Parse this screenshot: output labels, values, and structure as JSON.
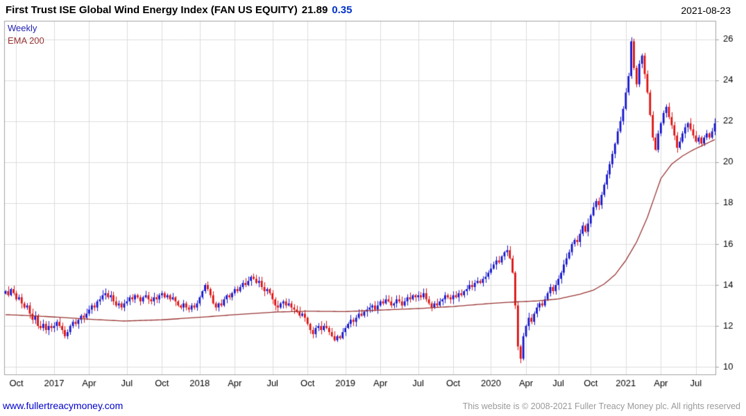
{
  "header": {
    "title": "First Trust ISE Global Wind Energy Index (FAN US EQUITY)",
    "last_price": "21.89",
    "change": "0.35",
    "date": "2021-08-23"
  },
  "legend": {
    "timeframe": "Weekly",
    "overlay": "EMA 200"
  },
  "footer": {
    "site_link": "www.fullertreacymoney.com",
    "copyright": "This website is © 2008-2021 Fuller Treacy Money plc. All rights reserved"
  },
  "colors": {
    "up_candle": "#1515cc",
    "down_candle": "#dd1111",
    "ema_line": "#993333",
    "grid": "#dcdcdc",
    "plot_border": "#a0a0a0",
    "axis_text": "#000000",
    "link_blue": "#0000cc",
    "copyright_gray": "#9a9a9a",
    "change_blue": "#0033cc",
    "weekly_label": "#2323b4"
  },
  "chart_data": {
    "type": "candlestick",
    "title": "First Trust ISE Global Wind Energy Index (FAN US EQUITY)",
    "timeframe": "Weekly",
    "overlay": "EMA 200",
    "last_close": 21.89,
    "change": 0.35,
    "ylim": [
      9.6,
      26.9
    ],
    "yticks": [
      10,
      12,
      14,
      16,
      18,
      20,
      22,
      24,
      26
    ],
    "grid": true,
    "legend_position": "top-left",
    "xticks": [
      {
        "label": "Oct",
        "week": 4
      },
      {
        "label": "2017",
        "week": 18
      },
      {
        "label": "Apr",
        "week": 31
      },
      {
        "label": "Jul",
        "week": 45
      },
      {
        "label": "Oct",
        "week": 58
      },
      {
        "label": "2018",
        "week": 72
      },
      {
        "label": "Apr",
        "week": 85
      },
      {
        "label": "Jul",
        "week": 99
      },
      {
        "label": "Oct",
        "week": 112
      },
      {
        "label": "2019",
        "week": 126
      },
      {
        "label": "Apr",
        "week": 139
      },
      {
        "label": "Jul",
        "week": 153
      },
      {
        "label": "Oct",
        "week": 166
      },
      {
        "label": "2020",
        "week": 180
      },
      {
        "label": "Apr",
        "week": 193
      },
      {
        "label": "Jul",
        "week": 205
      },
      {
        "label": "Oct",
        "week": 217
      },
      {
        "label": "2021",
        "week": 230
      },
      {
        "label": "Apr",
        "week": 243
      },
      {
        "label": "Jul",
        "week": 256
      }
    ],
    "weekly_closes": [
      13.7,
      13.5,
      13.8,
      13.6,
      13.3,
      13.4,
      13.1,
      12.9,
      13.0,
      12.6,
      12.3,
      12.5,
      12.0,
      11.9,
      12.1,
      11.8,
      12.0,
      11.9,
      12.0,
      12.2,
      12.0,
      11.8,
      11.5,
      11.7,
      12.0,
      12.2,
      12.1,
      12.3,
      12.5,
      12.4,
      12.6,
      12.8,
      13.0,
      12.9,
      13.2,
      13.3,
      13.5,
      13.6,
      13.4,
      13.5,
      13.2,
      13.0,
      13.1,
      12.9,
      13.1,
      13.2,
      13.4,
      13.3,
      13.5,
      13.4,
      13.2,
      13.4,
      13.5,
      13.3,
      13.2,
      13.4,
      13.3,
      13.5,
      13.6,
      13.4,
      13.5,
      13.3,
      13.4,
      13.2,
      13.0,
      12.9,
      13.1,
      12.9,
      12.8,
      13.0,
      12.9,
      13.1,
      13.4,
      13.7,
      14.0,
      13.8,
      13.5,
      13.1,
      12.9,
      13.1,
      13.0,
      13.3,
      13.5,
      13.4,
      13.6,
      13.8,
      13.7,
      13.9,
      14.1,
      14.0,
      14.2,
      14.4,
      14.3,
      14.1,
      14.2,
      13.9,
      13.7,
      13.8,
      13.6,
      13.3,
      13.0,
      12.9,
      13.1,
      13.2,
      13.0,
      13.1,
      12.9,
      12.8,
      12.7,
      12.5,
      12.6,
      12.4,
      12.1,
      11.8,
      11.6,
      11.9,
      12.0,
      11.8,
      12.0,
      11.9,
      11.7,
      11.5,
      11.3,
      11.5,
      11.4,
      11.7,
      11.9,
      12.1,
      12.3,
      12.2,
      12.4,
      12.6,
      12.5,
      12.7,
      12.8,
      12.9,
      13.0,
      12.8,
      13.0,
      13.2,
      13.1,
      13.3,
      13.2,
      13.0,
      13.1,
      13.3,
      13.2,
      13.0,
      13.2,
      13.4,
      13.3,
      13.5,
      13.4,
      13.5,
      13.4,
      13.6,
      13.3,
      13.1,
      12.9,
      13.1,
      13.0,
      13.2,
      13.3,
      13.5,
      13.4,
      13.3,
      13.5,
      13.4,
      13.6,
      13.5,
      13.7,
      13.8,
      14.0,
      13.9,
      14.1,
      14.2,
      14.1,
      14.3,
      14.4,
      14.6,
      14.8,
      15.0,
      15.2,
      15.1,
      15.4,
      15.6,
      15.7,
      15.3,
      14.6,
      13.0,
      11.0,
      10.4,
      11.5,
      12.0,
      12.4,
      12.2,
      12.6,
      12.9,
      13.1,
      13.0,
      13.3,
      13.6,
      13.9,
      13.7,
      14.0,
      14.3,
      14.6,
      15.0,
      15.3,
      15.6,
      16.0,
      16.2,
      16.1,
      16.5,
      16.9,
      16.6,
      17.0,
      17.4,
      17.8,
      18.1,
      17.9,
      18.4,
      18.9,
      19.4,
      19.9,
      20.4,
      20.9,
      21.5,
      22.0,
      22.6,
      23.4,
      24.2,
      25.9,
      24.6,
      23.8,
      24.8,
      25.2,
      24.3,
      23.4,
      22.3,
      21.2,
      20.6,
      21.4,
      21.9,
      22.4,
      22.7,
      22.2,
      21.8,
      21.3,
      20.7,
      21.0,
      21.4,
      21.7,
      21.9,
      21.6,
      21.3,
      21.0,
      21.2,
      20.9,
      21.2,
      21.4,
      21.2,
      21.5,
      21.89
    ],
    "ema200_anchors": [
      [
        0,
        12.55
      ],
      [
        10,
        12.5
      ],
      [
        20,
        12.42
      ],
      [
        32,
        12.32
      ],
      [
        44,
        12.24
      ],
      [
        58,
        12.3
      ],
      [
        72,
        12.42
      ],
      [
        85,
        12.55
      ],
      [
        100,
        12.68
      ],
      [
        112,
        12.72
      ],
      [
        126,
        12.7
      ],
      [
        140,
        12.78
      ],
      [
        153,
        12.85
      ],
      [
        166,
        12.95
      ],
      [
        180,
        13.1
      ],
      [
        190,
        13.18
      ],
      [
        197,
        13.22
      ],
      [
        205,
        13.32
      ],
      [
        213,
        13.55
      ],
      [
        218,
        13.75
      ],
      [
        222,
        14.05
      ],
      [
        226,
        14.5
      ],
      [
        230,
        15.2
      ],
      [
        234,
        16.1
      ],
      [
        238,
        17.3
      ],
      [
        243,
        19.2
      ],
      [
        247,
        19.9
      ],
      [
        251,
        20.3
      ],
      [
        255,
        20.6
      ],
      [
        259,
        20.85
      ],
      [
        263,
        21.1
      ]
    ]
  }
}
